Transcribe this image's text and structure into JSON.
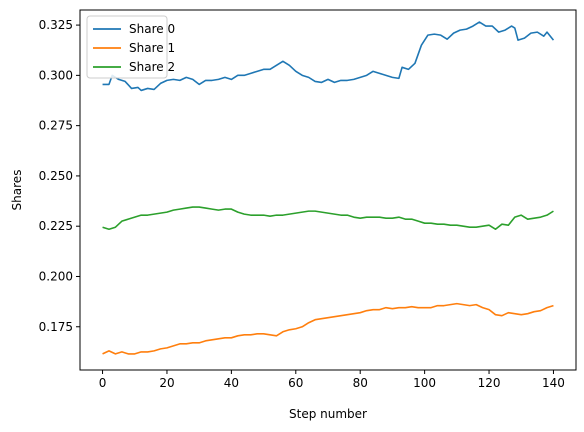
{
  "chart_data": {
    "type": "line",
    "xlabel": "Step number",
    "ylabel": "Shares",
    "xlim": [
      -7,
      147
    ],
    "ylim": [
      0.1535,
      0.3325
    ],
    "xticks": [
      0,
      20,
      40,
      60,
      80,
      100,
      120,
      140
    ],
    "yticks": [
      0.175,
      0.2,
      0.225,
      0.25,
      0.275,
      0.3,
      0.325
    ],
    "ytick_labels": [
      "0.175",
      "0.200",
      "0.225",
      "0.250",
      "0.275",
      "0.300",
      "0.325"
    ],
    "grid": false,
    "legend_position": "top-left",
    "series": [
      {
        "name": "Share 0",
        "color": "#1f77b4",
        "points": [
          [
            0,
            0.2955
          ],
          [
            2,
            0.2955
          ],
          [
            3,
            0.3
          ],
          [
            5,
            0.298
          ],
          [
            7,
            0.297
          ],
          [
            9,
            0.2935
          ],
          [
            11,
            0.294
          ],
          [
            12,
            0.2925
          ],
          [
            14,
            0.2935
          ],
          [
            16,
            0.293
          ],
          [
            18,
            0.296
          ],
          [
            20,
            0.2975
          ],
          [
            22,
            0.298
          ],
          [
            24,
            0.2975
          ],
          [
            26,
            0.299
          ],
          [
            28,
            0.298
          ],
          [
            30,
            0.2955
          ],
          [
            32,
            0.2975
          ],
          [
            34,
            0.2975
          ],
          [
            36,
            0.298
          ],
          [
            38,
            0.299
          ],
          [
            40,
            0.298
          ],
          [
            42,
            0.3
          ],
          [
            44,
            0.3
          ],
          [
            46,
            0.301
          ],
          [
            48,
            0.302
          ],
          [
            50,
            0.303
          ],
          [
            52,
            0.303
          ],
          [
            54,
            0.305
          ],
          [
            56,
            0.307
          ],
          [
            58,
            0.305
          ],
          [
            60,
            0.302
          ],
          [
            62,
            0.3
          ],
          [
            64,
            0.299
          ],
          [
            66,
            0.297
          ],
          [
            68,
            0.2965
          ],
          [
            70,
            0.298
          ],
          [
            72,
            0.2965
          ],
          [
            74,
            0.2975
          ],
          [
            76,
            0.2975
          ],
          [
            78,
            0.298
          ],
          [
            80,
            0.299
          ],
          [
            82,
            0.3
          ],
          [
            84,
            0.302
          ],
          [
            86,
            0.301
          ],
          [
            88,
            0.3
          ],
          [
            90,
            0.299
          ],
          [
            92,
            0.2985
          ],
          [
            93,
            0.304
          ],
          [
            95,
            0.303
          ],
          [
            97,
            0.306
          ],
          [
            99,
            0.315
          ],
          [
            101,
            0.32
          ],
          [
            103,
            0.3205
          ],
          [
            105,
            0.32
          ],
          [
            107,
            0.318
          ],
          [
            109,
            0.321
          ],
          [
            111,
            0.3225
          ],
          [
            113,
            0.323
          ],
          [
            115,
            0.3245
          ],
          [
            117,
            0.3265
          ],
          [
            119,
            0.3245
          ],
          [
            121,
            0.3245
          ],
          [
            123,
            0.3215
          ],
          [
            125,
            0.3225
          ],
          [
            127,
            0.3245
          ],
          [
            128,
            0.3235
          ],
          [
            129,
            0.3175
          ],
          [
            131,
            0.3185
          ],
          [
            133,
            0.321
          ],
          [
            135,
            0.3215
          ],
          [
            137,
            0.3195
          ],
          [
            138,
            0.3215
          ],
          [
            140,
            0.3175
          ]
        ]
      },
      {
        "name": "Share 1",
        "color": "#ff7f0e",
        "points": [
          [
            0,
            0.1615
          ],
          [
            2,
            0.163
          ],
          [
            4,
            0.1615
          ],
          [
            6,
            0.1625
          ],
          [
            8,
            0.1615
          ],
          [
            10,
            0.1615
          ],
          [
            12,
            0.1625
          ],
          [
            14,
            0.1625
          ],
          [
            16,
            0.163
          ],
          [
            18,
            0.164
          ],
          [
            20,
            0.1645
          ],
          [
            22,
            0.1655
          ],
          [
            24,
            0.1665
          ],
          [
            26,
            0.1665
          ],
          [
            28,
            0.167
          ],
          [
            30,
            0.167
          ],
          [
            32,
            0.168
          ],
          [
            34,
            0.1685
          ],
          [
            36,
            0.169
          ],
          [
            38,
            0.1695
          ],
          [
            40,
            0.1695
          ],
          [
            42,
            0.1705
          ],
          [
            44,
            0.171
          ],
          [
            46,
            0.171
          ],
          [
            48,
            0.1715
          ],
          [
            50,
            0.1715
          ],
          [
            52,
            0.171
          ],
          [
            54,
            0.1705
          ],
          [
            56,
            0.1725
          ],
          [
            58,
            0.1735
          ],
          [
            60,
            0.174
          ],
          [
            62,
            0.175
          ],
          [
            64,
            0.177
          ],
          [
            66,
            0.1785
          ],
          [
            68,
            0.179
          ],
          [
            70,
            0.1795
          ],
          [
            72,
            0.18
          ],
          [
            74,
            0.1805
          ],
          [
            76,
            0.181
          ],
          [
            78,
            0.1815
          ],
          [
            80,
            0.182
          ],
          [
            82,
            0.183
          ],
          [
            84,
            0.1835
          ],
          [
            86,
            0.1835
          ],
          [
            88,
            0.1845
          ],
          [
            90,
            0.184
          ],
          [
            92,
            0.1845
          ],
          [
            94,
            0.1845
          ],
          [
            96,
            0.185
          ],
          [
            98,
            0.1845
          ],
          [
            100,
            0.1845
          ],
          [
            102,
            0.1845
          ],
          [
            104,
            0.1855
          ],
          [
            106,
            0.1855
          ],
          [
            108,
            0.186
          ],
          [
            110,
            0.1865
          ],
          [
            112,
            0.186
          ],
          [
            114,
            0.1855
          ],
          [
            116,
            0.186
          ],
          [
            118,
            0.1845
          ],
          [
            120,
            0.1835
          ],
          [
            122,
            0.181
          ],
          [
            124,
            0.1805
          ],
          [
            126,
            0.182
          ],
          [
            128,
            0.1815
          ],
          [
            130,
            0.181
          ],
          [
            132,
            0.1815
          ],
          [
            134,
            0.1825
          ],
          [
            136,
            0.183
          ],
          [
            138,
            0.1845
          ],
          [
            140,
            0.1855
          ]
        ]
      },
      {
        "name": "Share 2",
        "color": "#2ca02c",
        "points": [
          [
            0,
            0.2245
          ],
          [
            2,
            0.2235
          ],
          [
            4,
            0.2245
          ],
          [
            6,
            0.2275
          ],
          [
            8,
            0.2285
          ],
          [
            10,
            0.2295
          ],
          [
            12,
            0.2305
          ],
          [
            14,
            0.2305
          ],
          [
            16,
            0.231
          ],
          [
            18,
            0.2315
          ],
          [
            20,
            0.232
          ],
          [
            22,
            0.233
          ],
          [
            24,
            0.2335
          ],
          [
            26,
            0.234
          ],
          [
            28,
            0.2345
          ],
          [
            30,
            0.2345
          ],
          [
            32,
            0.234
          ],
          [
            34,
            0.2335
          ],
          [
            36,
            0.233
          ],
          [
            38,
            0.2335
          ],
          [
            40,
            0.2335
          ],
          [
            42,
            0.232
          ],
          [
            44,
            0.231
          ],
          [
            46,
            0.2305
          ],
          [
            48,
            0.2305
          ],
          [
            50,
            0.2305
          ],
          [
            52,
            0.23
          ],
          [
            54,
            0.2305
          ],
          [
            56,
            0.2305
          ],
          [
            58,
            0.231
          ],
          [
            60,
            0.2315
          ],
          [
            62,
            0.232
          ],
          [
            64,
            0.2325
          ],
          [
            66,
            0.2325
          ],
          [
            68,
            0.232
          ],
          [
            70,
            0.2315
          ],
          [
            72,
            0.231
          ],
          [
            74,
            0.2305
          ],
          [
            76,
            0.2305
          ],
          [
            78,
            0.2295
          ],
          [
            80,
            0.229
          ],
          [
            82,
            0.2295
          ],
          [
            84,
            0.2295
          ],
          [
            86,
            0.2295
          ],
          [
            88,
            0.229
          ],
          [
            90,
            0.229
          ],
          [
            92,
            0.2295
          ],
          [
            94,
            0.2285
          ],
          [
            96,
            0.2285
          ],
          [
            98,
            0.2275
          ],
          [
            100,
            0.2265
          ],
          [
            102,
            0.2265
          ],
          [
            104,
            0.226
          ],
          [
            106,
            0.226
          ],
          [
            108,
            0.2255
          ],
          [
            110,
            0.2255
          ],
          [
            112,
            0.225
          ],
          [
            114,
            0.2245
          ],
          [
            116,
            0.2245
          ],
          [
            118,
            0.225
          ],
          [
            120,
            0.2255
          ],
          [
            122,
            0.2235
          ],
          [
            124,
            0.226
          ],
          [
            126,
            0.2255
          ],
          [
            128,
            0.2295
          ],
          [
            130,
            0.2305
          ],
          [
            132,
            0.2285
          ],
          [
            134,
            0.229
          ],
          [
            136,
            0.2295
          ],
          [
            138,
            0.2305
          ],
          [
            140,
            0.2325
          ]
        ]
      }
    ]
  }
}
